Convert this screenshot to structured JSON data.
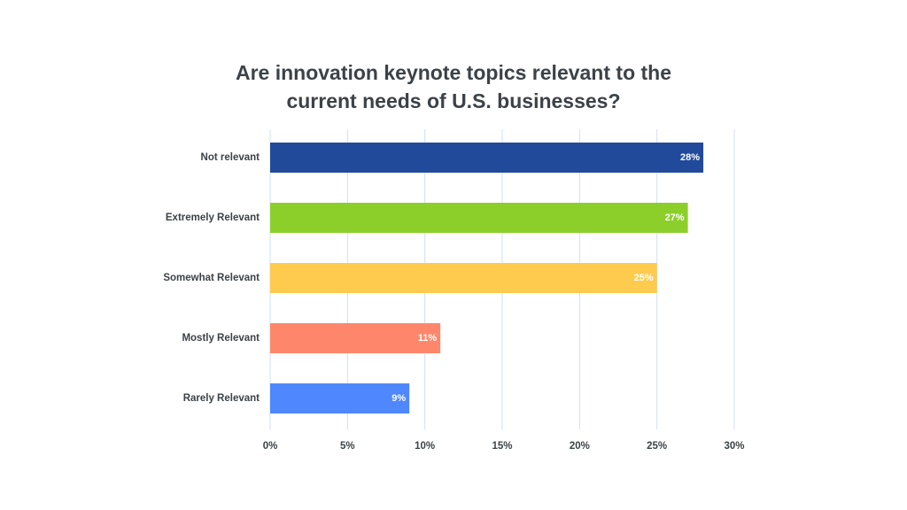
{
  "chart_data": {
    "type": "bar",
    "orientation": "horizontal",
    "title_lines": [
      "Are innovation keynote topics relevant to the",
      "current needs of U.S. businesses?"
    ],
    "categories": [
      "Not relevant",
      "Extremely Relevant",
      "Somewhat Relevant",
      "Mostly Relevant",
      "Rarely Relevant"
    ],
    "values": [
      28,
      27,
      25,
      11,
      9
    ],
    "data_labels": [
      "28%",
      "27%",
      "25%",
      "11%",
      "9%"
    ],
    "colors": [
      "#214a9a",
      "#8ccf2a",
      "#fecb4f",
      "#fe876b",
      "#4f87fe"
    ],
    "xlim": [
      0,
      30
    ],
    "x_ticks": [
      0,
      5,
      10,
      15,
      20,
      25,
      30
    ],
    "x_tick_labels": [
      "0%",
      "5%",
      "10%",
      "15%",
      "20%",
      "25%",
      "30%"
    ],
    "grid": true,
    "legend": "none"
  }
}
